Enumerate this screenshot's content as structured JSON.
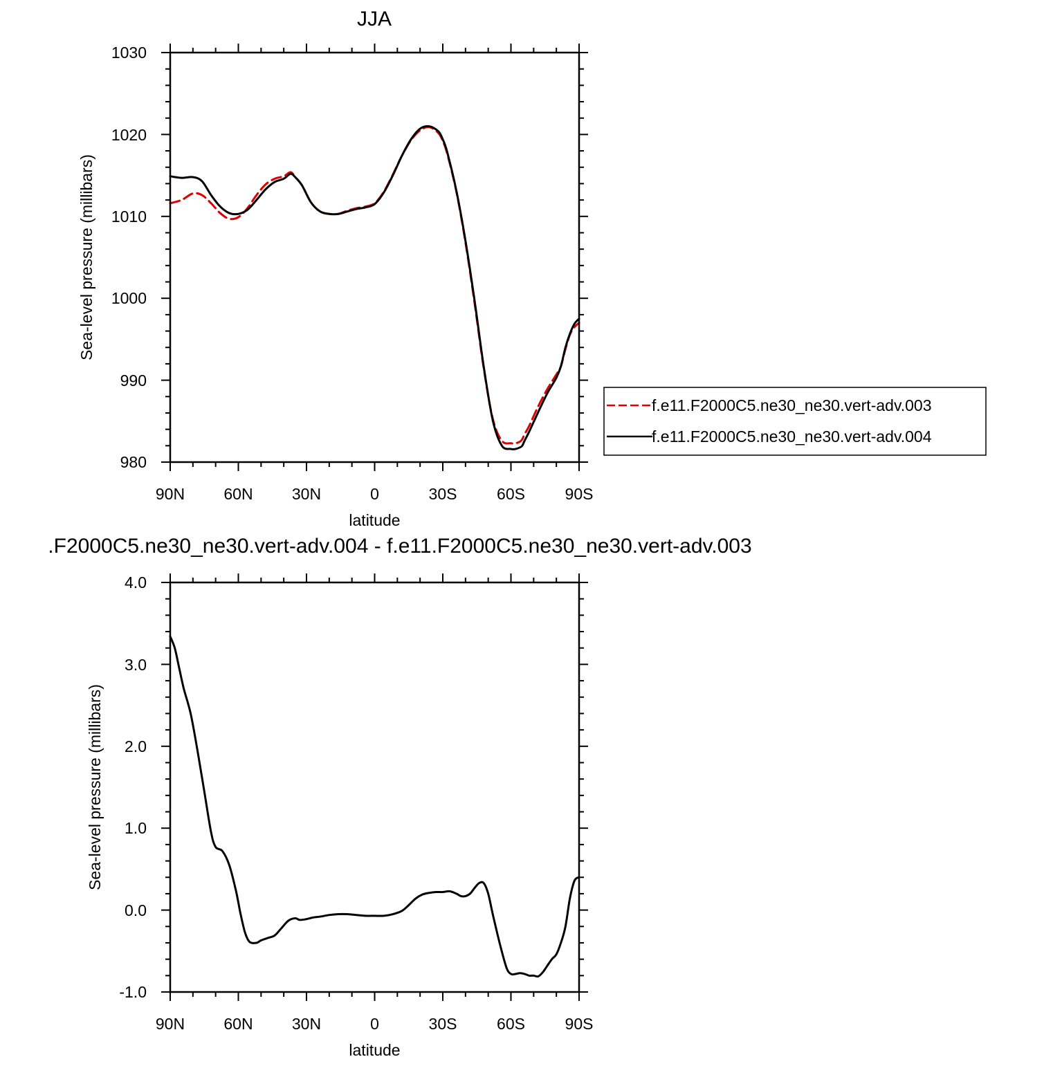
{
  "chart_data": [
    {
      "type": "line",
      "title": "JJA",
      "xlabel": "latitude",
      "ylabel": "Sea-level pressure (millibars)",
      "xlim": [
        90,
        -90
      ],
      "ylim": [
        980,
        1030
      ],
      "x_ticks": [
        90,
        60,
        30,
        0,
        -30,
        -60,
        -90
      ],
      "x_tick_labels": [
        "90N",
        "60N",
        "30N",
        "0",
        "30S",
        "60S",
        "90S"
      ],
      "y_ticks": [
        980,
        990,
        1000,
        1010,
        1020,
        1030
      ],
      "y_tick_labels": [
        "980",
        "990",
        "1000",
        "1010",
        "1020",
        "1030"
      ],
      "grid": false,
      "legend": "right",
      "series": [
        {
          "name": "f.e11.F2000C5.ne30_ne30.vert-adv.003",
          "color": "#e00000",
          "dash": true,
          "x": [
            90,
            85,
            80,
            76,
            72,
            68,
            64,
            60,
            56,
            52,
            48,
            44,
            40,
            37,
            35,
            32,
            28,
            24,
            20,
            16,
            12,
            8,
            4,
            0,
            -4,
            -8,
            -12,
            -16,
            -20,
            -24,
            -28,
            -30,
            -32,
            -36,
            -40,
            -44,
            -48,
            -52,
            -56,
            -60,
            -62,
            -64,
            -65,
            -66,
            -68,
            -72,
            -76,
            -80,
            -82,
            -84,
            -86,
            -88,
            -90
          ],
          "y": [
            1011.6,
            1012.0,
            1012.8,
            1012.6,
            1011.6,
            1010.4,
            1009.7,
            1009.9,
            1011.0,
            1012.6,
            1013.9,
            1014.6,
            1014.9,
            1015.4,
            1014.8,
            1013.8,
            1011.7,
            1010.6,
            1010.3,
            1010.3,
            1010.7,
            1011.0,
            1011.2,
            1011.6,
            1013.0,
            1015.1,
            1017.4,
            1019.3,
            1020.5,
            1020.9,
            1020.2,
            1019.2,
            1017.6,
            1013.0,
            1006.8,
            999.4,
            991.5,
            985.3,
            982.6,
            982.3,
            982.3,
            982.5,
            982.8,
            983.4,
            984.4,
            986.8,
            988.9,
            990.7,
            991.7,
            993.8,
            995.6,
            996.5,
            997.0
          ]
        },
        {
          "name": "f.e11.F2000C5.ne30_ne30.vert-adv.004",
          "color": "#000000",
          "dash": false,
          "x": [
            90,
            85,
            80,
            76,
            72,
            68,
            64,
            60,
            56,
            52,
            48,
            44,
            40,
            37,
            35,
            32,
            28,
            24,
            20,
            16,
            12,
            8,
            4,
            0,
            -4,
            -8,
            -12,
            -16,
            -20,
            -24,
            -28,
            -30,
            -32,
            -36,
            -40,
            -44,
            -48,
            -52,
            -56,
            -60,
            -62,
            -64,
            -65,
            -66,
            -68,
            -72,
            -76,
            -80,
            -82,
            -84,
            -86,
            -88,
            -90
          ],
          "y": [
            1014.9,
            1014.7,
            1014.8,
            1014.3,
            1012.6,
            1011.2,
            1010.4,
            1010.3,
            1010.8,
            1012.0,
            1013.3,
            1014.2,
            1014.6,
            1015.2,
            1014.8,
            1013.8,
            1011.7,
            1010.6,
            1010.3,
            1010.3,
            1010.6,
            1010.9,
            1011.1,
            1011.5,
            1012.9,
            1015.0,
            1017.4,
            1019.4,
            1020.7,
            1021.0,
            1020.4,
            1019.4,
            1017.8,
            1013.1,
            1007.0,
            999.7,
            991.7,
            985.1,
            982.0,
            981.6,
            981.6,
            981.8,
            982.0,
            982.6,
            983.7,
            986.1,
            988.4,
            990.3,
            991.7,
            994.0,
            995.7,
            996.9,
            997.5
          ]
        }
      ]
    },
    {
      "type": "line",
      "title": ".F2000C5.ne30_ne30.vert-adv.004 - f.e11.F2000C5.ne30_ne30.vert-adv.003",
      "xlabel": "latitude",
      "ylabel": "Sea-level pressure (millibars)",
      "xlim": [
        90,
        -90
      ],
      "ylim": [
        -1.0,
        4.0
      ],
      "x_ticks": [
        90,
        60,
        30,
        0,
        -30,
        -60,
        -90
      ],
      "x_tick_labels": [
        "90N",
        "60N",
        "30N",
        "0",
        "30S",
        "60S",
        "90S"
      ],
      "y_ticks": [
        -1.0,
        0.0,
        1.0,
        2.0,
        3.0,
        4.0
      ],
      "y_tick_labels": [
        "-1.0",
        "0.0",
        "1.0",
        "2.0",
        "3.0",
        "4.0"
      ],
      "grid": false,
      "series": [
        {
          "color": "#000000",
          "dash": false,
          "x": [
            90,
            88,
            86,
            84,
            81,
            78,
            75,
            72,
            70,
            67,
            64,
            61,
            59,
            57,
            55,
            52,
            50,
            47,
            44,
            41,
            38,
            35,
            33,
            30,
            27,
            24,
            20,
            16,
            12,
            8,
            4,
            0,
            -4,
            -8,
            -12,
            -15,
            -18,
            -21,
            -24,
            -27,
            -30,
            -33,
            -36,
            -38,
            -40,
            -42,
            -44,
            -46,
            -48,
            -50,
            -52,
            -55,
            -58,
            -60,
            -62,
            -64,
            -66,
            -68,
            -70,
            -72,
            -74,
            -76,
            -78,
            -80,
            -82,
            -84,
            -86,
            -88,
            -90
          ],
          "y": [
            3.34,
            3.2,
            2.95,
            2.7,
            2.4,
            1.95,
            1.45,
            0.95,
            0.77,
            0.72,
            0.55,
            0.23,
            -0.05,
            -0.28,
            -0.39,
            -0.4,
            -0.37,
            -0.34,
            -0.31,
            -0.22,
            -0.13,
            -0.1,
            -0.12,
            -0.11,
            -0.09,
            -0.08,
            -0.06,
            -0.05,
            -0.05,
            -0.06,
            -0.07,
            -0.07,
            -0.07,
            -0.05,
            -0.01,
            0.06,
            0.14,
            0.19,
            0.21,
            0.22,
            0.22,
            0.23,
            0.2,
            0.17,
            0.17,
            0.2,
            0.27,
            0.33,
            0.33,
            0.2,
            -0.05,
            -0.4,
            -0.7,
            -0.78,
            -0.78,
            -0.77,
            -0.78,
            -0.8,
            -0.8,
            -0.81,
            -0.76,
            -0.68,
            -0.6,
            -0.54,
            -0.4,
            -0.2,
            0.15,
            0.36,
            0.4
          ]
        }
      ]
    }
  ]
}
